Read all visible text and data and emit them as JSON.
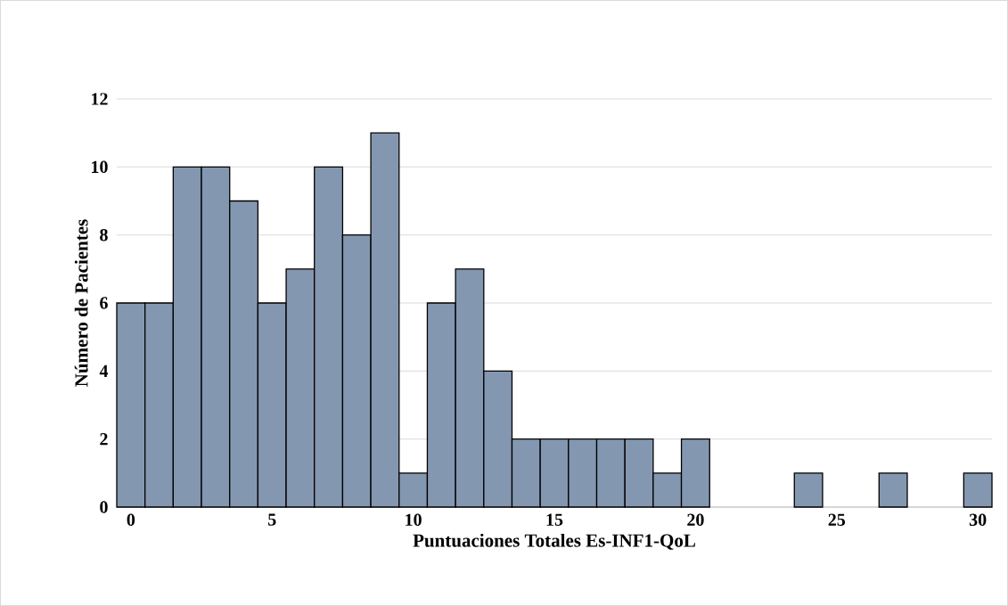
{
  "chart_data": {
    "type": "histogram",
    "xlabel": "Puntuaciones Totales Es-INF1-QoL",
    "ylabel": "Número de Pacientes",
    "bins": [
      -0.5,
      0.5,
      1.5,
      2.5,
      3.5,
      4.5,
      5.5,
      6.5,
      7.5,
      8.5,
      9.5,
      10.5,
      11.5,
      12.5,
      13.5,
      14.5,
      15.5,
      16.5,
      17.5,
      18.5,
      19.5,
      20.5,
      21.5,
      22.5,
      23.5,
      24.5,
      25.5,
      26.5,
      27.5,
      28.5,
      29.5,
      30.5
    ],
    "values": [
      6,
      6,
      10,
      10,
      9,
      6,
      7,
      10,
      8,
      11,
      1,
      6,
      7,
      4,
      2,
      2,
      2,
      2,
      2,
      1,
      2,
      0,
      0,
      0,
      1,
      0,
      0,
      1,
      0,
      0,
      1
    ],
    "color": "#8497b0",
    "xlim": [
      -0.5,
      30.5
    ],
    "xticks": [
      0,
      5,
      10,
      15,
      20,
      25,
      30
    ],
    "ylim": [
      0,
      12
    ],
    "yticks": [
      0,
      2,
      4,
      6,
      8,
      10,
      12
    ],
    "grid": "y"
  }
}
